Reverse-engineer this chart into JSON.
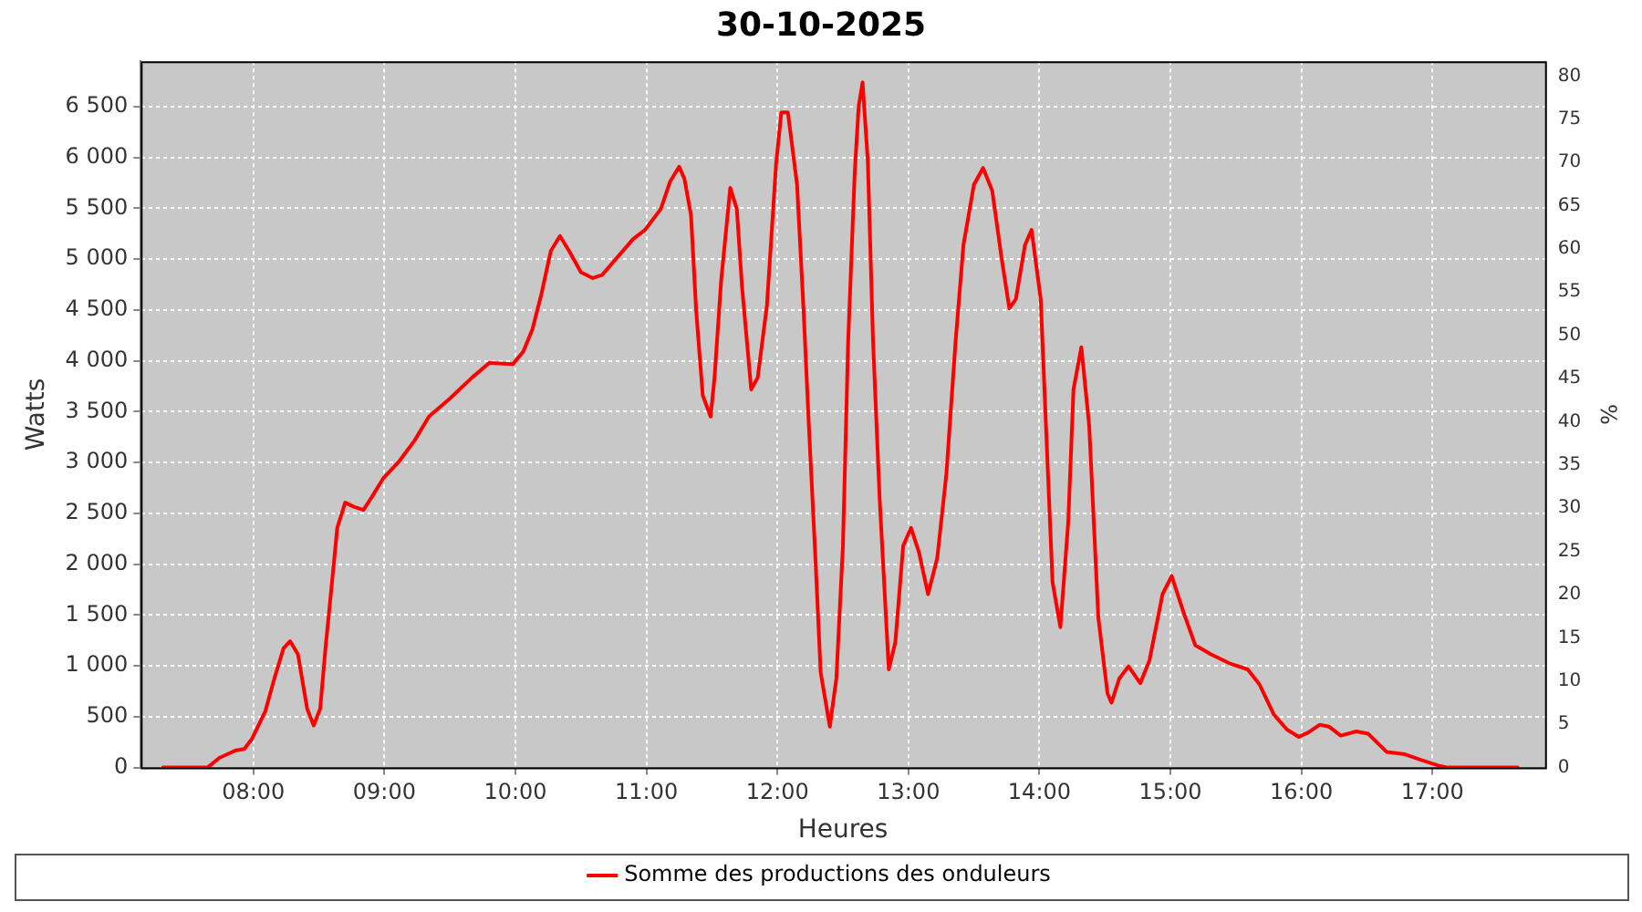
{
  "chart_data": {
    "type": "line",
    "title": "30-10-2025",
    "xlabel": "Heures",
    "ylabel": "Watts",
    "y2label": "%",
    "xlim": [
      7.14,
      17.86
    ],
    "xticks": [
      {
        "value": 8,
        "label": "08:00"
      },
      {
        "value": 9,
        "label": "09:00"
      },
      {
        "value": 10,
        "label": "10:00"
      },
      {
        "value": 11,
        "label": "11:00"
      },
      {
        "value": 12,
        "label": "12:00"
      },
      {
        "value": 13,
        "label": "13:00"
      },
      {
        "value": 14,
        "label": "14:00"
      },
      {
        "value": 15,
        "label": "15:00"
      },
      {
        "value": 16,
        "label": "16:00"
      },
      {
        "value": 17,
        "label": "17:00"
      }
    ],
    "ylim": [
      0,
      6945
    ],
    "yticks": [
      0,
      500,
      {
        "value": 1000,
        "label": "1 000"
      },
      {
        "value": 1500,
        "label": "1 500"
      },
      {
        "value": 2000,
        "label": "2 000"
      },
      {
        "value": 2500,
        "label": "2 500"
      },
      {
        "value": 3000,
        "label": "3 000"
      },
      {
        "value": 3500,
        "label": "3 500"
      },
      {
        "value": 4000,
        "label": "4 000"
      },
      {
        "value": 4500,
        "label": "4 500"
      },
      {
        "value": 5000,
        "label": "5 000"
      },
      {
        "value": 5500,
        "label": "5 500"
      },
      {
        "value": 6000,
        "label": "6 000"
      },
      {
        "value": 6500,
        "label": "6 500"
      }
    ],
    "y2lim": [
      0,
      81.7
    ],
    "y2ticks": [
      0,
      5,
      10,
      15,
      20,
      25,
      30,
      35,
      40,
      45,
      50,
      55,
      60,
      65,
      70,
      75,
      80
    ],
    "grid": true,
    "legend": "bottom",
    "marker": "none",
    "line_style": "solid",
    "series": [
      {
        "name": "Somme des productions des onduleurs",
        "color": "#ff0000",
        "x": [
          7.31,
          7.65,
          7.74,
          7.86,
          7.93,
          7.99,
          8.09,
          8.16,
          8.23,
          8.28,
          8.34,
          8.41,
          8.46,
          8.51,
          8.55,
          8.6,
          8.64,
          8.7,
          8.77,
          8.84,
          8.9,
          8.99,
          9.11,
          9.23,
          9.34,
          9.5,
          9.67,
          9.8,
          9.98,
          10.06,
          10.13,
          10.2,
          10.27,
          10.34,
          10.41,
          10.5,
          10.59,
          10.66,
          10.78,
          10.9,
          10.99,
          11.11,
          11.18,
          11.25,
          11.29,
          11.34,
          11.38,
          11.43,
          11.49,
          11.52,
          11.57,
          11.64,
          11.69,
          11.73,
          11.8,
          11.85,
          11.92,
          11.99,
          12.03,
          12.08,
          12.15,
          12.2,
          12.24,
          12.29,
          12.33,
          12.4,
          12.45,
          12.5,
          12.54,
          12.59,
          12.62,
          12.65,
          12.69,
          12.73,
          12.78,
          12.85,
          12.9,
          12.96,
          13.02,
          13.08,
          13.15,
          13.22,
          13.29,
          13.36,
          13.42,
          13.5,
          13.57,
          13.64,
          13.71,
          13.77,
          13.82,
          13.89,
          13.94,
          14.01,
          14.05,
          14.1,
          14.16,
          14.22,
          14.26,
          14.32,
          14.38,
          14.45,
          14.52,
          14.55,
          14.61,
          14.68,
          14.77,
          14.84,
          14.94,
          15.01,
          15.1,
          15.19,
          15.31,
          15.45,
          15.59,
          15.68,
          15.79,
          15.89,
          15.98,
          16.05,
          16.14,
          16.21,
          16.3,
          16.42,
          16.51,
          16.65,
          16.79,
          16.91,
          17.05,
          17.12,
          17.65
        ],
        "values": [
          0,
          0,
          95,
          166,
          183,
          284,
          551,
          876,
          1172,
          1243,
          1113,
          580,
          414,
          580,
          1172,
          1824,
          2357,
          2605,
          2563,
          2534,
          2652,
          2842,
          3007,
          3215,
          3452,
          3629,
          3836,
          3978,
          3966,
          4090,
          4310,
          4665,
          5079,
          5227,
          5079,
          4871,
          4813,
          4842,
          5020,
          5199,
          5287,
          5493,
          5760,
          5908,
          5790,
          5435,
          4488,
          3659,
          3451,
          3836,
          4783,
          5701,
          5493,
          4724,
          3717,
          3836,
          4546,
          5937,
          6442,
          6442,
          5731,
          4488,
          3362,
          2060,
          936,
          403,
          876,
          2179,
          4191,
          5848,
          6500,
          6737,
          5967,
          4191,
          2652,
          965,
          1231,
          2179,
          2357,
          2119,
          1705,
          2060,
          2890,
          4191,
          5138,
          5731,
          5896,
          5671,
          5020,
          4516,
          4605,
          5138,
          5287,
          4605,
          3362,
          1824,
          1380,
          2415,
          3717,
          4133,
          3362,
          1469,
          728,
          639,
          876,
          995,
          829,
          1053,
          1705,
          1883,
          1527,
          1202,
          1113,
          1025,
          965,
          817,
          520,
          373,
          302,
          343,
          421,
          403,
          314,
          355,
          332,
          154,
          130,
          76,
          18,
          0,
          0
        ]
      }
    ]
  }
}
